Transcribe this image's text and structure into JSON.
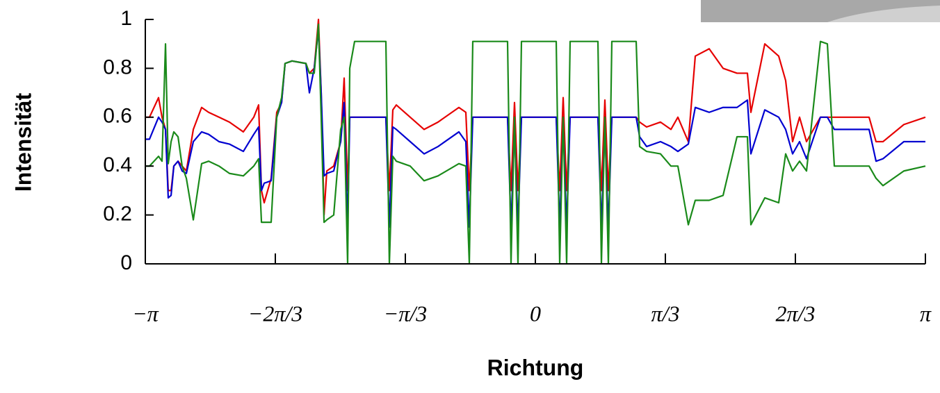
{
  "chart_data": {
    "type": "line",
    "xlabel": "Richtung",
    "ylabel": "Intensität",
    "xlim": [
      -3.1416,
      3.1416
    ],
    "ylim": [
      0,
      1
    ],
    "xticks": [
      {
        "value": -3.1416,
        "label": "−π"
      },
      {
        "value": -2.0944,
        "label": "−2π/3"
      },
      {
        "value": -1.0472,
        "label": "−π/3"
      },
      0,
      {
        "value": 1.0472,
        "label": "π/3"
      },
      {
        "value": 2.0944,
        "label": "2π/3"
      },
      {
        "value": 3.1416,
        "label": "π"
      }
    ],
    "yticks": [
      0,
      0.2,
      0.4,
      0.6,
      0.8,
      1
    ],
    "x": [
      -3.1416,
      -3.108,
      -3.035,
      -3.007,
      -2.979,
      -2.957,
      -2.934,
      -2.912,
      -2.878,
      -2.845,
      -2.811,
      -2.755,
      -2.688,
      -2.632,
      -2.548,
      -2.464,
      -2.352,
      -2.268,
      -2.229,
      -2.206,
      -2.184,
      -2.128,
      -2.083,
      -2.044,
      -2.016,
      -1.96,
      -1.848,
      -1.82,
      -1.781,
      -1.747,
      -1.725,
      -1.702,
      -1.68,
      -1.624,
      -1.568,
      -1.54,
      -1.512,
      -1.495,
      -1.456,
      -1.288,
      -1.204,
      -1.176,
      -1.148,
      -1.12,
      -1.008,
      -0.896,
      -0.784,
      -0.616,
      -0.56,
      -0.532,
      -0.504,
      -0.392,
      -0.224,
      -0.196,
      -0.168,
      -0.14,
      -0.112,
      0.168,
      0.196,
      0.224,
      0.252,
      0.28,
      0.504,
      0.532,
      0.56,
      0.588,
      0.616,
      0.644,
      0.728,
      0.812,
      0.84,
      0.896,
      1.008,
      1.092,
      1.148,
      1.232,
      1.288,
      1.4,
      1.512,
      1.624,
      1.708,
      1.736,
      1.848,
      1.96,
      2.016,
      2.072,
      2.128,
      2.184,
      2.296,
      2.352,
      2.408,
      2.688,
      2.744,
      2.8,
      2.968,
      3.1416
    ],
    "series": [
      {
        "color": "#e60000",
        "values": [
          0.6,
          0.6,
          0.68,
          0.6,
          0.55,
          0.3,
          0.3,
          0.4,
          0.42,
          0.4,
          0.38,
          0.55,
          0.64,
          0.62,
          0.6,
          0.58,
          0.54,
          0.6,
          0.65,
          0.3,
          0.25,
          0.35,
          0.62,
          0.66,
          0.82,
          0.83,
          0.82,
          0.78,
          0.8,
          1.0,
          0.7,
          0.2,
          0.38,
          0.4,
          0.5,
          0.76,
          0.3,
          0.6,
          0.6,
          0.6,
          0.6,
          0.3,
          0.63,
          0.65,
          0.6,
          0.55,
          0.58,
          0.64,
          0.62,
          0.3,
          0.6,
          0.6,
          0.6,
          0.3,
          0.66,
          0.3,
          0.6,
          0.6,
          0.3,
          0.68,
          0.3,
          0.6,
          0.6,
          0.3,
          0.67,
          0.3,
          0.6,
          0.6,
          0.6,
          0.6,
          0.58,
          0.56,
          0.58,
          0.55,
          0.6,
          0.5,
          0.85,
          0.88,
          0.8,
          0.78,
          0.78,
          0.62,
          0.9,
          0.85,
          0.75,
          0.5,
          0.6,
          0.5,
          0.6,
          0.6,
          0.6,
          0.6,
          0.5,
          0.5,
          0.57,
          0.6
        ]
      },
      {
        "color": "#0000d0",
        "values": [
          0.51,
          0.51,
          0.6,
          0.58,
          0.55,
          0.27,
          0.28,
          0.4,
          0.42,
          0.38,
          0.37,
          0.5,
          0.54,
          0.53,
          0.5,
          0.49,
          0.46,
          0.53,
          0.56,
          0.3,
          0.33,
          0.34,
          0.6,
          0.66,
          0.82,
          0.83,
          0.82,
          0.7,
          0.8,
          0.96,
          0.7,
          0.36,
          0.37,
          0.38,
          0.5,
          0.66,
          0.15,
          0.6,
          0.6,
          0.6,
          0.6,
          0.15,
          0.56,
          0.55,
          0.5,
          0.45,
          0.48,
          0.54,
          0.5,
          0.15,
          0.6,
          0.6,
          0.6,
          0.15,
          0.56,
          0.15,
          0.6,
          0.6,
          0.15,
          0.58,
          0.15,
          0.6,
          0.6,
          0.15,
          0.56,
          0.15,
          0.6,
          0.6,
          0.6,
          0.6,
          0.52,
          0.48,
          0.5,
          0.48,
          0.46,
          0.49,
          0.64,
          0.62,
          0.64,
          0.64,
          0.67,
          0.45,
          0.63,
          0.6,
          0.55,
          0.45,
          0.5,
          0.43,
          0.6,
          0.6,
          0.55,
          0.55,
          0.42,
          0.43,
          0.5,
          0.5
        ]
      },
      {
        "color": "#1a8a1a",
        "values": [
          0.4,
          0.4,
          0.44,
          0.42,
          0.9,
          0.41,
          0.5,
          0.54,
          0.52,
          0.4,
          0.35,
          0.18,
          0.41,
          0.42,
          0.4,
          0.37,
          0.36,
          0.4,
          0.43,
          0.17,
          0.17,
          0.17,
          0.6,
          0.68,
          0.82,
          0.83,
          0.82,
          0.78,
          0.78,
          0.98,
          0.6,
          0.17,
          0.18,
          0.2,
          0.55,
          0.6,
          0,
          0.8,
          0.91,
          0.91,
          0.91,
          0,
          0.44,
          0.42,
          0.4,
          0.34,
          0.36,
          0.41,
          0.4,
          0,
          0.91,
          0.91,
          0.91,
          0,
          0.6,
          0,
          0.91,
          0.91,
          0,
          0.6,
          0,
          0.91,
          0.91,
          0,
          0.6,
          0,
          0.91,
          0.91,
          0.91,
          0.91,
          0.48,
          0.46,
          0.45,
          0.4,
          0.4,
          0.16,
          0.26,
          0.26,
          0.28,
          0.52,
          0.52,
          0.16,
          0.27,
          0.25,
          0.45,
          0.38,
          0.42,
          0.38,
          0.91,
          0.9,
          0.4,
          0.4,
          0.35,
          0.32,
          0.38,
          0.4
        ]
      }
    ]
  }
}
